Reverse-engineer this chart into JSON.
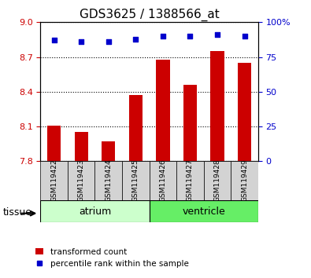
{
  "title": "GDS3625 / 1388566_at",
  "samples": [
    "GSM119422",
    "GSM119423",
    "GSM119424",
    "GSM119425",
    "GSM119426",
    "GSM119427",
    "GSM119428",
    "GSM119429"
  ],
  "bar_values": [
    8.11,
    8.05,
    7.97,
    8.37,
    8.68,
    8.46,
    8.75,
    8.65
  ],
  "percentile_values": [
    87,
    86,
    86,
    88,
    90,
    90,
    91,
    90
  ],
  "ylim_left": [
    7.8,
    9.0
  ],
  "ylim_right": [
    0,
    100
  ],
  "yticks_left": [
    7.8,
    8.1,
    8.4,
    8.7,
    9.0
  ],
  "yticks_right": [
    0,
    25,
    50,
    75,
    100
  ],
  "bar_color": "#cc0000",
  "dot_color": "#0000cc",
  "tissue_groups": [
    {
      "label": "atrium",
      "start": 0,
      "end": 4,
      "color": "#ccffcc"
    },
    {
      "label": "ventricle",
      "start": 4,
      "end": 8,
      "color": "#66ee66"
    }
  ],
  "tissue_label": "tissue",
  "legend_bar_label": "transformed count",
  "legend_dot_label": "percentile rank within the sample",
  "background_color": "#ffffff",
  "tick_label_color_left": "#cc0000",
  "tick_label_color_right": "#0000cc"
}
